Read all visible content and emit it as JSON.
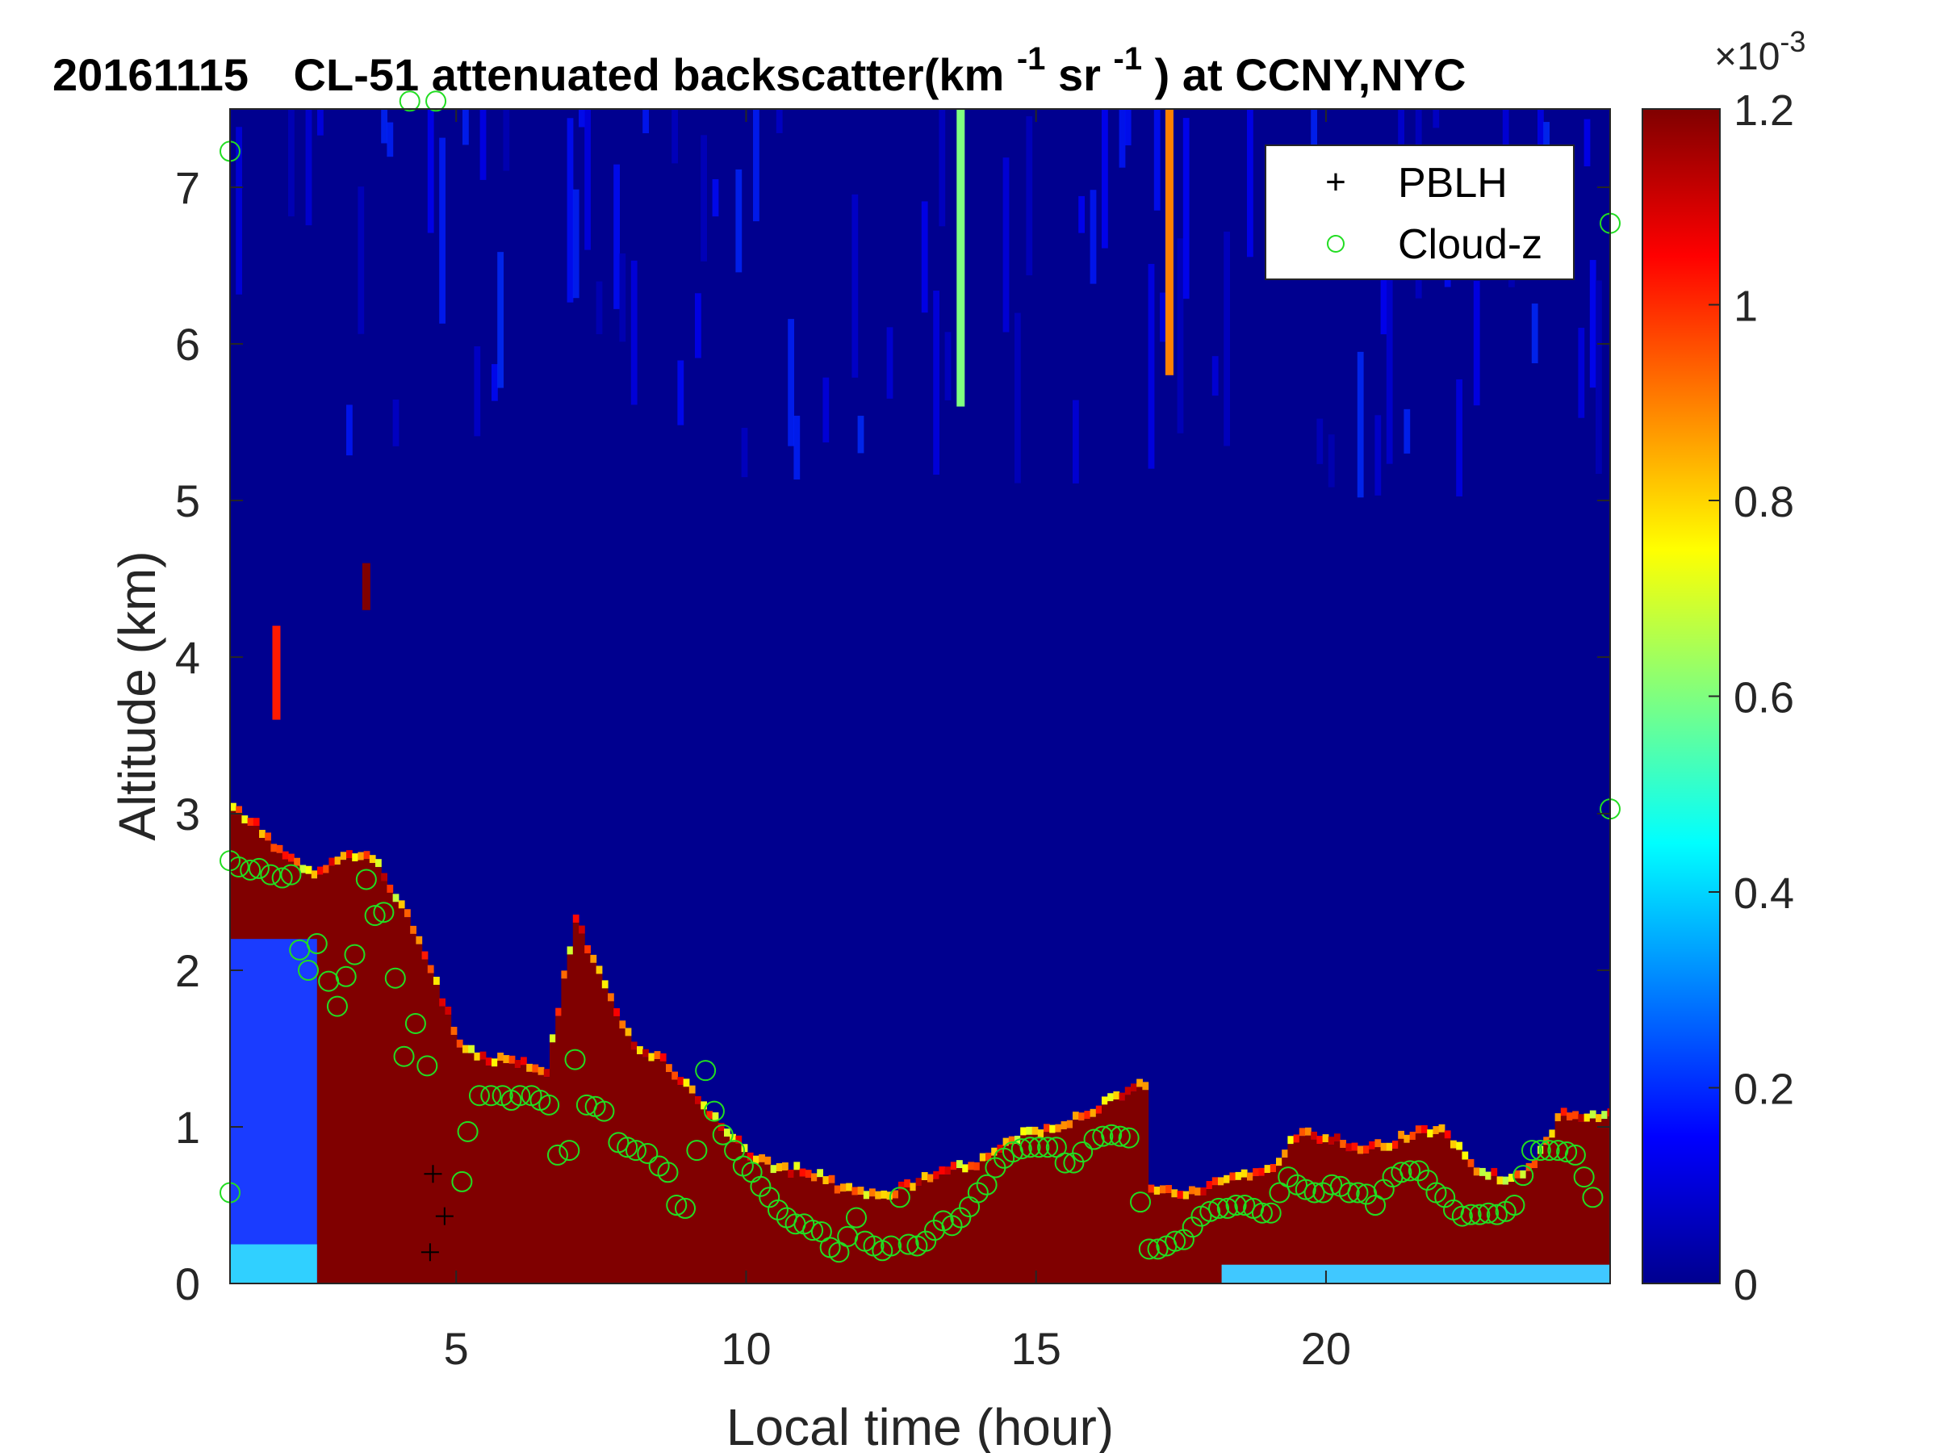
{
  "chart_data": {
    "type": "heatmap",
    "title": {
      "date": "20161115",
      "text_1": "CL-51 attenuated backscatter(km",
      "sup_1": "-1",
      "text_2": "sr",
      "sup_2": "-1",
      "text_3": ") at CCNY,NYC"
    },
    "xlabel": "Local time (hour)",
    "ylabel": "Altitude (km)",
    "xlim": [
      1.1,
      24.9
    ],
    "ylim": [
      0,
      7.5
    ],
    "xticks": [
      "5",
      "10",
      "15",
      "20"
    ],
    "xtick_values": [
      5,
      10,
      15,
      20
    ],
    "yticks": [
      "0",
      "1",
      "2",
      "3",
      "4",
      "5",
      "6",
      "7"
    ],
    "ytick_values": [
      0,
      1,
      2,
      3,
      4,
      5,
      6,
      7
    ],
    "colorbar": {
      "colormap": "jet",
      "range": [
        0,
        1.2
      ],
      "ticks": [
        "0",
        "0.2",
        "0.4",
        "0.6",
        "0.8",
        "1",
        "1.2"
      ],
      "tick_values": [
        0,
        0.2,
        0.4,
        0.6,
        0.8,
        1.0,
        1.2
      ],
      "exponent_base": "10",
      "exponent_power": "-3",
      "exponent_prefix": "×"
    },
    "legend": {
      "placement": "top-right",
      "entries": [
        {
          "label": "PBLH",
          "marker": "+",
          "color": "#000000"
        },
        {
          "label": "Cloud-z",
          "marker": "o",
          "color": "#22dd22"
        }
      ]
    },
    "aerosol_layer_top_km": {
      "t": [
        1.1,
        1.5,
        2.0,
        2.5,
        3.0,
        3.5,
        4.0,
        4.5,
        5.0,
        5.5,
        6.0,
        6.5,
        7.0,
        7.5,
        8.0,
        8.5,
        9.0,
        9.5,
        10.0,
        10.5,
        11.0,
        11.5,
        12.0,
        12.5,
        13.0,
        13.5,
        14.0,
        14.5,
        15.0,
        15.5,
        16.0,
        16.5,
        16.85,
        16.9,
        17.5,
        18.0,
        18.5,
        19.0,
        19.5,
        20.0,
        20.5,
        21.0,
        21.5,
        22.0,
        22.5,
        23.0,
        23.5,
        24.0,
        24.5,
        24.9
      ],
      "top": [
        3.0,
        2.9,
        2.7,
        2.6,
        2.7,
        2.7,
        2.4,
        2.0,
        1.5,
        1.4,
        1.4,
        1.3,
        2.3,
        1.9,
        1.5,
        1.4,
        1.2,
        1.0,
        0.8,
        0.7,
        0.7,
        0.6,
        0.55,
        0.55,
        0.65,
        0.7,
        0.75,
        0.9,
        0.95,
        1.0,
        1.1,
        1.2,
        1.25,
        0.6,
        0.55,
        0.6,
        0.65,
        0.7,
        0.95,
        0.9,
        0.85,
        0.85,
        0.95,
        0.95,
        0.7,
        0.65,
        0.7,
        1.05,
        1.05,
        1.05
      ]
    },
    "upper_cloud_features": [
      {
        "t": 3.45,
        "bottom_km": 4.3,
        "top_km": 4.6,
        "intensity": 1.0
      },
      {
        "t": 1.9,
        "bottom_km": 3.6,
        "top_km": 4.2,
        "intensity": 0.85
      },
      {
        "t": 13.7,
        "bottom_km": 5.6,
        "top_km": 7.5,
        "intensity": 0.5
      },
      {
        "t": 17.3,
        "bottom_km": 5.8,
        "top_km": 7.5,
        "intensity": 0.75
      }
    ],
    "series": [
      {
        "name": "PBLH",
        "points": [
          [
            4.6,
            0.7
          ],
          [
            4.8,
            0.43
          ],
          [
            4.55,
            0.2
          ]
        ]
      },
      {
        "name": "Cloud-z",
        "points": [
          [
            1.1,
            2.7
          ],
          [
            1.25,
            2.66
          ],
          [
            1.45,
            2.64
          ],
          [
            1.6,
            2.65
          ],
          [
            1.8,
            2.61
          ],
          [
            2.0,
            2.59
          ],
          [
            2.15,
            2.61
          ],
          [
            2.3,
            2.13
          ],
          [
            2.45,
            2.0
          ],
          [
            2.6,
            2.17
          ],
          [
            2.8,
            1.93
          ],
          [
            2.95,
            1.77
          ],
          [
            3.1,
            1.96
          ],
          [
            3.25,
            2.1
          ],
          [
            3.45,
            2.58
          ],
          [
            3.6,
            2.35
          ],
          [
            3.75,
            2.37
          ],
          [
            3.95,
            1.95
          ],
          [
            4.1,
            1.45
          ],
          [
            4.3,
            1.66
          ],
          [
            4.5,
            1.39
          ],
          [
            4.2,
            7.55
          ],
          [
            4.65,
            7.55
          ],
          [
            5.1,
            0.65
          ],
          [
            5.2,
            0.97
          ],
          [
            5.4,
            1.2
          ],
          [
            5.6,
            1.2
          ],
          [
            5.8,
            1.2
          ],
          [
            5.95,
            1.17
          ],
          [
            6.1,
            1.2
          ],
          [
            6.3,
            1.2
          ],
          [
            6.45,
            1.17
          ],
          [
            6.6,
            1.14
          ],
          [
            6.75,
            0.82
          ],
          [
            6.95,
            0.85
          ],
          [
            7.05,
            1.43
          ],
          [
            7.25,
            1.14
          ],
          [
            7.4,
            1.13
          ],
          [
            7.55,
            1.1
          ],
          [
            7.8,
            0.9
          ],
          [
            7.95,
            0.87
          ],
          [
            8.1,
            0.85
          ],
          [
            8.3,
            0.83
          ],
          [
            8.5,
            0.75
          ],
          [
            8.65,
            0.71
          ],
          [
            8.8,
            0.5
          ],
          [
            8.95,
            0.48
          ],
          [
            9.15,
            0.85
          ],
          [
            9.3,
            1.36
          ],
          [
            9.45,
            1.1
          ],
          [
            9.6,
            0.95
          ],
          [
            9.8,
            0.85
          ],
          [
            9.95,
            0.75
          ],
          [
            10.1,
            0.71
          ],
          [
            10.25,
            0.62
          ],
          [
            10.4,
            0.55
          ],
          [
            10.55,
            0.47
          ],
          [
            10.7,
            0.42
          ],
          [
            10.85,
            0.38
          ],
          [
            11.0,
            0.38
          ],
          [
            11.15,
            0.34
          ],
          [
            11.3,
            0.33
          ],
          [
            11.45,
            0.23
          ],
          [
            11.6,
            0.2
          ],
          [
            11.75,
            0.3
          ],
          [
            11.9,
            0.42
          ],
          [
            12.05,
            0.27
          ],
          [
            12.2,
            0.24
          ],
          [
            12.35,
            0.21
          ],
          [
            12.5,
            0.24
          ],
          [
            12.65,
            0.55
          ],
          [
            12.8,
            0.25
          ],
          [
            12.95,
            0.24
          ],
          [
            13.1,
            0.27
          ],
          [
            13.25,
            0.34
          ],
          [
            13.4,
            0.4
          ],
          [
            13.55,
            0.37
          ],
          [
            13.7,
            0.42
          ],
          [
            13.85,
            0.49
          ],
          [
            14.0,
            0.58
          ],
          [
            14.15,
            0.63
          ],
          [
            14.3,
            0.74
          ],
          [
            14.45,
            0.8
          ],
          [
            14.6,
            0.84
          ],
          [
            14.75,
            0.86
          ],
          [
            14.9,
            0.87
          ],
          [
            15.05,
            0.87
          ],
          [
            15.2,
            0.87
          ],
          [
            15.35,
            0.87
          ],
          [
            15.5,
            0.77
          ],
          [
            15.65,
            0.77
          ],
          [
            15.8,
            0.84
          ],
          [
            16.0,
            0.92
          ],
          [
            16.15,
            0.94
          ],
          [
            16.3,
            0.95
          ],
          [
            16.45,
            0.94
          ],
          [
            16.6,
            0.93
          ],
          [
            16.8,
            0.52
          ],
          [
            16.95,
            0.22
          ],
          [
            17.1,
            0.22
          ],
          [
            17.25,
            0.24
          ],
          [
            17.4,
            0.27
          ],
          [
            17.55,
            0.28
          ],
          [
            17.7,
            0.36
          ],
          [
            17.85,
            0.43
          ],
          [
            18.0,
            0.46
          ],
          [
            18.15,
            0.48
          ],
          [
            18.3,
            0.48
          ],
          [
            18.45,
            0.5
          ],
          [
            18.6,
            0.5
          ],
          [
            18.75,
            0.48
          ],
          [
            18.9,
            0.45
          ],
          [
            19.05,
            0.45
          ],
          [
            19.2,
            0.58
          ],
          [
            19.35,
            0.68
          ],
          [
            19.5,
            0.63
          ],
          [
            19.65,
            0.6
          ],
          [
            19.8,
            0.58
          ],
          [
            19.95,
            0.58
          ],
          [
            20.1,
            0.63
          ],
          [
            20.25,
            0.62
          ],
          [
            20.4,
            0.58
          ],
          [
            20.55,
            0.58
          ],
          [
            20.7,
            0.57
          ],
          [
            20.85,
            0.5
          ],
          [
            21.0,
            0.6
          ],
          [
            21.15,
            0.68
          ],
          [
            21.3,
            0.71
          ],
          [
            21.45,
            0.72
          ],
          [
            21.6,
            0.72
          ],
          [
            21.75,
            0.66
          ],
          [
            21.9,
            0.58
          ],
          [
            22.05,
            0.55
          ],
          [
            22.2,
            0.47
          ],
          [
            22.35,
            0.43
          ],
          [
            22.5,
            0.44
          ],
          [
            22.65,
            0.44
          ],
          [
            22.8,
            0.45
          ],
          [
            22.95,
            0.44
          ],
          [
            23.1,
            0.46
          ],
          [
            23.25,
            0.5
          ],
          [
            23.4,
            0.69
          ],
          [
            23.55,
            0.85
          ],
          [
            23.7,
            0.85
          ],
          [
            23.85,
            0.85
          ],
          [
            24.0,
            0.85
          ],
          [
            24.15,
            0.84
          ],
          [
            24.3,
            0.82
          ],
          [
            24.45,
            0.68
          ],
          [
            24.6,
            0.55
          ],
          [
            1.1,
            7.23
          ],
          [
            1.1,
            0.58
          ],
          [
            24.9,
            6.77
          ],
          [
            24.9,
            3.03
          ]
        ]
      }
    ]
  }
}
